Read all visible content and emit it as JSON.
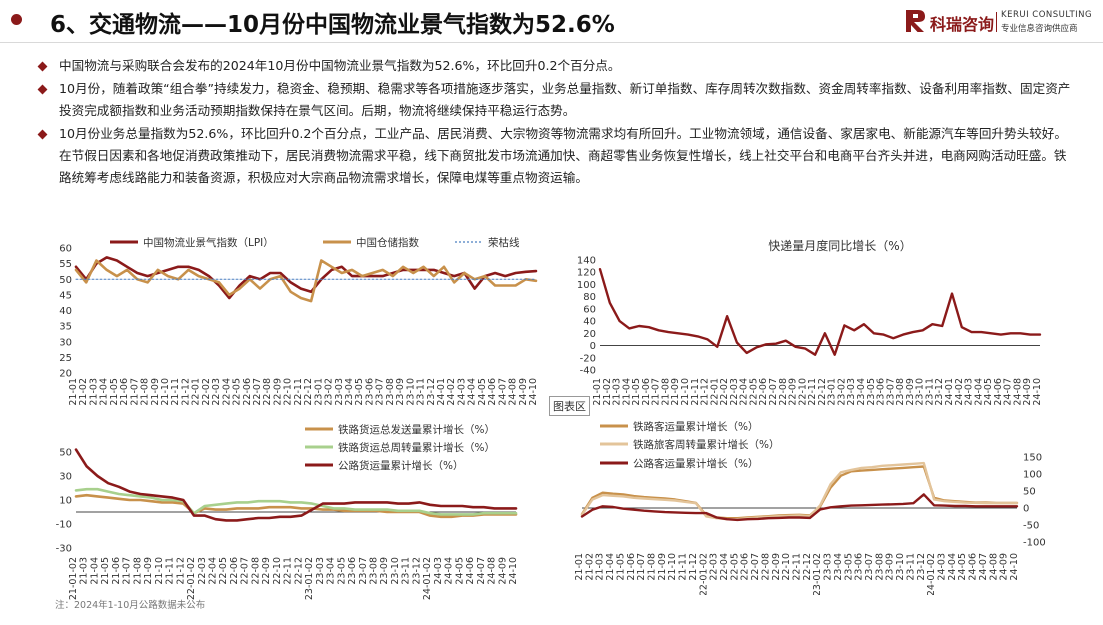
{
  "header": {
    "title": "6、交通物流——10月份中国物流业景气指数为52.6%",
    "logo_cn": "科瑞咨询",
    "logo_en": "KERUI CONSULTING",
    "logo_sub": "专业信息咨询供应商"
  },
  "bullets": [
    "中国物流与采购联合会发布的2024年10月份中国物流业景气指数为52.6%，环比回升0.2个百分点。",
    "10月份，随着政策“组合拳”持续发力，稳资金、稳预期、稳需求等各项措施逐步落实，业务总量指数、新订单指数、库存周转次数指数、资金周转率指数、设备利用率指数、固定资产投资完成额指数和业务活动预期指数保持在景气区间。后期，物流将继续保持平稳运行态势。",
    "10月份业务总量指数为52.6%，环比回升0.2个百分点，工业产品、居民消费、大宗物资等物流需求均有所回升。工业物流领域，通信设备、家居家电、新能源汽车等回升势头较好。在节假日因素和各地促消费政策推动下，居民消费物流需求平稳，线下商贸批发市场流通加快、商超零售业务恢复性增长，线上社交平台和电商平台齐头并进，电商网购活动旺盛。铁路统筹考虑线路能力和装备资源，积极应对大宗商品物流需求增长，保障电煤等重点物资运输。"
  ],
  "note": "注：2024年1-10月公路数据未公布",
  "tooltip": "图表区",
  "colors": {
    "dark_red": "#8b1a1a",
    "gold": "#c8914b",
    "light_tan": "#e3c49a",
    "light_green": "#a8d08d"
  },
  "chart_data": [
    {
      "type": "line",
      "title": "",
      "ylim": [
        20,
        60
      ],
      "yticks": [
        "60",
        "55",
        "50",
        "45",
        "40",
        "35",
        "30",
        "25",
        "20"
      ],
      "x": [
        "21-01",
        "21-02",
        "21-03",
        "21-04",
        "21-05",
        "21-06",
        "21-07",
        "21-08",
        "21-09",
        "21-10",
        "21-11",
        "21-12",
        "22-01",
        "22-02",
        "22-03",
        "22-04",
        "22-05",
        "22-06",
        "22-07",
        "22-08",
        "22-09",
        "22-10",
        "22-11",
        "22-12",
        "23-01",
        "23-02",
        "23-03",
        "23-04",
        "23-05",
        "23-06",
        "23-07",
        "23-08",
        "23-09",
        "23-10",
        "23-11",
        "23-12",
        "24-01",
        "24-02",
        "24-03",
        "24-04",
        "24-05",
        "24-06",
        "24-07",
        "24-08",
        "24-09",
        "24-10"
      ],
      "series": [
        {
          "name": "中国物流业景气指数（LPI）",
          "color": "#8b1a1a",
          "values": [
            54,
            50,
            55,
            57,
            56,
            54,
            52,
            51,
            52,
            53,
            54,
            54,
            53,
            51,
            48,
            44,
            48,
            51,
            50,
            52,
            52,
            49,
            47,
            46,
            50,
            53,
            54,
            51,
            51,
            51,
            51,
            52,
            53,
            53,
            53,
            53,
            52,
            51,
            52,
            47,
            51,
            52,
            51,
            52,
            52.4,
            52.6
          ]
        },
        {
          "name": "中国仓储指数",
          "color": "#c8914b",
          "values": [
            53,
            49,
            56,
            53,
            51,
            53,
            50,
            49,
            53,
            51,
            50,
            53,
            51,
            50,
            49,
            45,
            47,
            50,
            47,
            50,
            51,
            46,
            44,
            43,
            56,
            54,
            52,
            53,
            51,
            52,
            53,
            51,
            54,
            52,
            54,
            51,
            54,
            49,
            52,
            50,
            51,
            48,
            48,
            48,
            50,
            49.5
          ]
        },
        {
          "name": "荣枯线",
          "color": "#4a7fc1",
          "values": [
            50,
            50,
            50,
            50,
            50,
            50,
            50,
            50,
            50,
            50,
            50,
            50,
            50,
            50,
            50,
            50,
            50,
            50,
            50,
            50,
            50,
            50,
            50,
            50,
            50,
            50,
            50,
            50,
            50,
            50,
            50,
            50,
            50,
            50,
            50,
            50,
            50,
            50,
            50,
            50,
            50,
            50,
            50,
            50,
            50,
            50
          ]
        }
      ]
    },
    {
      "type": "line",
      "title": "快递量月度同比增长（%）",
      "ylim": [
        -40,
        140
      ],
      "yticks": [
        "140",
        "120",
        "100",
        "80",
        "60",
        "40",
        "20",
        "0",
        "-20",
        "-40"
      ],
      "x": [
        "21-01",
        "21-02",
        "21-03",
        "21-04",
        "21-05",
        "21-06",
        "21-07",
        "21-08",
        "21-09",
        "21-10",
        "21-11",
        "21-12",
        "22-01",
        "22-02",
        "22-03",
        "22-04",
        "22-05",
        "22-06",
        "22-07",
        "22-08",
        "22-09",
        "22-10",
        "22-11",
        "22-12",
        "23-01",
        "23-02",
        "23-03",
        "23-04",
        "23-05",
        "23-06",
        "23-07",
        "23-08",
        "23-09",
        "23-10",
        "23-11",
        "23-12",
        "24-01",
        "24-02",
        "24-03",
        "24-04",
        "24-05",
        "24-06",
        "24-07",
        "24-08",
        "24-09",
        "24-10"
      ],
      "series": [
        {
          "name": "快递量同比增长",
          "color": "#8b1a1a",
          "values": [
            125,
            70,
            40,
            28,
            32,
            30,
            25,
            22,
            20,
            18,
            15,
            10,
            -2,
            48,
            5,
            -12,
            -3,
            2,
            3,
            8,
            -2,
            -5,
            -15,
            20,
            -15,
            33,
            25,
            35,
            20,
            18,
            12,
            18,
            22,
            25,
            35,
            32,
            85,
            30,
            22,
            22,
            20,
            18,
            20,
            20,
            18,
            18
          ]
        }
      ]
    },
    {
      "type": "line",
      "title": "",
      "ylim": [
        -30,
        50
      ],
      "yticks": [
        "50",
        "30",
        "10",
        "-10",
        "-30"
      ],
      "x": [
        "21-01-02",
        "21-03",
        "21-04",
        "21-05",
        "21-06",
        "21-07",
        "21-08",
        "21-09",
        "21-10",
        "21-11",
        "21-12",
        "22-01-02",
        "22-03",
        "22-04",
        "22-05",
        "22-06",
        "22-07",
        "22-08",
        "22-09",
        "22-10",
        "22-11",
        "22-12",
        "23-01-02",
        "23-03",
        "23-04",
        "23-05",
        "23-06",
        "23-07",
        "23-08",
        "23-09",
        "23-10",
        "23-11",
        "23-12",
        "24-01-02",
        "24-03",
        "24-04",
        "24-05",
        "24-06",
        "24-07",
        "24-08",
        "24-09",
        "24-10"
      ],
      "series": [
        {
          "name": "铁路货运总发送量累计增长（%）",
          "color": "#c8914b",
          "values": [
            13,
            14,
            13,
            12,
            11,
            10,
            10,
            9,
            8,
            8,
            7,
            -1,
            3,
            2,
            2,
            3,
            3,
            3,
            4,
            4,
            4,
            3,
            3,
            2,
            2,
            1,
            1,
            1,
            1,
            0,
            0,
            0,
            0,
            -3,
            -4,
            -4,
            -3,
            -3,
            -2,
            -2,
            -2,
            -2
          ]
        },
        {
          "name": "铁路货运总周转量累计增长（%）",
          "color": "#a8d08d",
          "values": [
            18,
            19,
            19,
            17,
            15,
            14,
            13,
            12,
            10,
            10,
            9,
            -1,
            5,
            6,
            7,
            8,
            8,
            9,
            9,
            9,
            8,
            8,
            7,
            5,
            3,
            3,
            2,
            2,
            2,
            2,
            1,
            1,
            1,
            -1,
            -2,
            -2,
            -2,
            -2,
            -1,
            -1,
            -1,
            -1
          ]
        },
        {
          "name": "公路货运量累计增长（%）",
          "color": "#8b1a1a",
          "values": [
            52,
            38,
            30,
            24,
            21,
            17,
            15,
            14,
            13,
            12,
            10,
            -3,
            -3,
            -6,
            -7,
            -7,
            -6,
            -5,
            -5,
            -4,
            -4,
            -3,
            2,
            7,
            7,
            7,
            8,
            8,
            8,
            8,
            7,
            7,
            8,
            6,
            5,
            5,
            5,
            4,
            4,
            3,
            3,
            3
          ]
        }
      ]
    },
    {
      "type": "line",
      "title": "",
      "ylim": [
        -100,
        150
      ],
      "yticks": [
        "150",
        "100",
        "50",
        "0",
        "-50",
        "-100"
      ],
      "x": [
        "21-01",
        "21-02",
        "21-03",
        "21-04",
        "21-05",
        "21-06",
        "21-07",
        "21-08",
        "21-09",
        "21-10",
        "21-11",
        "21-12",
        "22-01-02",
        "22-03",
        "22-04",
        "22-05",
        "22-06",
        "22-07",
        "22-08",
        "22-09",
        "22-10",
        "22-11",
        "22-12",
        "23-01-02",
        "23-03",
        "23-04",
        "23-05",
        "23-06",
        "23-07",
        "23-08",
        "23-09",
        "23-10",
        "23-11",
        "23-12",
        "24-01-02",
        "24-03",
        "24-04",
        "24-05",
        "24-06",
        "24-07",
        "24-08",
        "24-09",
        "24-10"
      ],
      "series": [
        {
          "name": "铁路客运量累计增长（%）",
          "color": "#c8914b",
          "values": [
            -18,
            30,
            45,
            42,
            40,
            35,
            32,
            30,
            28,
            25,
            20,
            15,
            -22,
            -28,
            -30,
            -30,
            -28,
            -26,
            -24,
            -22,
            -21,
            -20,
            -22,
            5,
            60,
            95,
            108,
            110,
            112,
            114,
            116,
            118,
            120,
            122,
            30,
            22,
            20,
            18,
            16,
            16,
            15,
            15,
            15
          ]
        },
        {
          "name": "铁路旅客周转量累计增长（%）",
          "color": "#e3c49a",
          "values": [
            -20,
            25,
            38,
            36,
            34,
            30,
            28,
            26,
            24,
            22,
            18,
            14,
            -25,
            -30,
            -33,
            -33,
            -30,
            -28,
            -26,
            -24,
            -23,
            -22,
            -24,
            8,
            70,
            105,
            112,
            118,
            120,
            124,
            126,
            128,
            130,
            132,
            25,
            20,
            18,
            16,
            15,
            14,
            14,
            14,
            14
          ]
        },
        {
          "name": "公路客运量累计增长（%）",
          "color": "#8b1a1a",
          "values": [
            -25,
            -5,
            5,
            3,
            -2,
            -5,
            -8,
            -10,
            -12,
            -13,
            -14,
            -15,
            -15,
            -28,
            -33,
            -35,
            -33,
            -32,
            -30,
            -29,
            -28,
            -28,
            -29,
            -4,
            2,
            5,
            7,
            8,
            9,
            10,
            11,
            12,
            14,
            40,
            8,
            7,
            6,
            6,
            5,
            5,
            5,
            5,
            5
          ]
        }
      ]
    }
  ]
}
